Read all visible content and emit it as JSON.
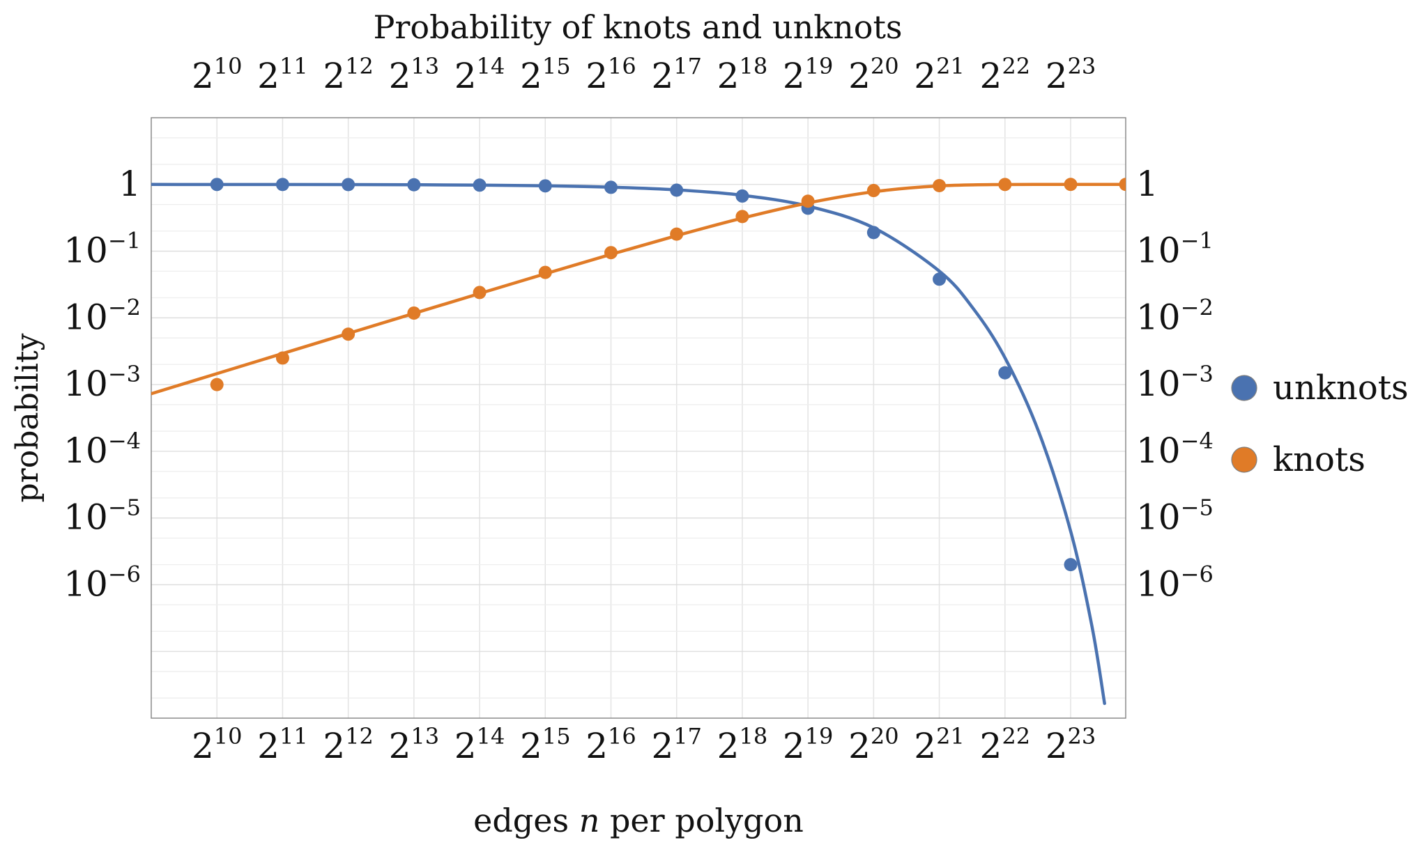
{
  "chart_data": {
    "type": "scatter",
    "title": "Probability of knots and unknots",
    "xlabel_parts": [
      "edges ",
      "n",
      " per polygon"
    ],
    "ylabel": "probability",
    "x_scale": "log2",
    "y_scale": "log10",
    "xlim": [
      512,
      15000000
    ],
    "ylim": [
      1e-08,
      10
    ],
    "grid": true,
    "legend_position": "right",
    "x_ticks": [
      {
        "value": 1024,
        "base": "2",
        "exp": "10"
      },
      {
        "value": 2048,
        "base": "2",
        "exp": "11"
      },
      {
        "value": 4096,
        "base": "2",
        "exp": "12"
      },
      {
        "value": 8192,
        "base": "2",
        "exp": "13"
      },
      {
        "value": 16384,
        "base": "2",
        "exp": "14"
      },
      {
        "value": 32768,
        "base": "2",
        "exp": "15"
      },
      {
        "value": 65536,
        "base": "2",
        "exp": "16"
      },
      {
        "value": 131072,
        "base": "2",
        "exp": "17"
      },
      {
        "value": 262144,
        "base": "2",
        "exp": "18"
      },
      {
        "value": 524288,
        "base": "2",
        "exp": "19"
      },
      {
        "value": 1048576,
        "base": "2",
        "exp": "20"
      },
      {
        "value": 2097152,
        "base": "2",
        "exp": "21"
      },
      {
        "value": 4194304,
        "base": "2",
        "exp": "22"
      },
      {
        "value": 8388608,
        "base": "2",
        "exp": "23"
      }
    ],
    "y_ticks": [
      {
        "value": 1,
        "base": "1",
        "exp": ""
      },
      {
        "value": 0.1,
        "base": "10",
        "exp": "−1"
      },
      {
        "value": 0.01,
        "base": "10",
        "exp": "−2"
      },
      {
        "value": 0.001,
        "base": "10",
        "exp": "−3"
      },
      {
        "value": 0.0001,
        "base": "10",
        "exp": "−4"
      },
      {
        "value": 1e-05,
        "base": "10",
        "exp": "−5"
      },
      {
        "value": 1e-06,
        "base": "10",
        "exp": "−6"
      }
    ],
    "series": [
      {
        "name": "unknots",
        "color": "#4a72b0",
        "x": [
          1024,
          2048,
          4096,
          8192,
          16384,
          32768,
          65536,
          131072,
          262144,
          524288,
          1048576,
          2097152,
          4194304,
          8388608
        ],
        "y": [
          0.999,
          0.997,
          0.994,
          0.988,
          0.976,
          0.952,
          0.905,
          0.82,
          0.67,
          0.44,
          0.19,
          0.038,
          0.0015,
          2e-06
        ],
        "fit_x": [
          512,
          1024,
          2048,
          4096,
          8192,
          16384,
          32768,
          65536,
          131072,
          262144,
          524288,
          1048576,
          2097152,
          3000000,
          4194304,
          6000000,
          8388608,
          10500000,
          12000000
        ],
        "fit_y": [
          0.9993,
          0.9986,
          0.9971,
          0.9942,
          0.9884,
          0.9769,
          0.9543,
          0.9107,
          0.8294,
          0.6879,
          0.4732,
          0.2239,
          0.0502,
          0.0138,
          0.00252,
          0.000193,
          6.34e-06,
          2.4e-07,
          1.66e-08
        ]
      },
      {
        "name": "knots",
        "color": "#e07b27",
        "x": [
          1024,
          2048,
          4096,
          8192,
          16384,
          32768,
          65536,
          131072,
          262144,
          524288,
          1048576,
          2097152,
          4194304,
          8388608,
          15000000
        ],
        "y": [
          0.001,
          0.0025,
          0.0057,
          0.0118,
          0.024,
          0.048,
          0.095,
          0.18,
          0.33,
          0.56,
          0.81,
          0.96,
          0.9985,
          0.99999,
          1
        ],
        "fit_x": [
          512,
          1024,
          2048,
          4096,
          8192,
          16384,
          32768,
          65536,
          131072,
          262144,
          524288,
          1048576,
          2097152,
          4194304,
          8388608,
          15000000
        ],
        "fit_y": [
          0.00073,
          0.00146,
          0.00292,
          0.00584,
          0.01166,
          0.02318,
          0.0458,
          0.0895,
          0.1707,
          0.3121,
          0.5268,
          0.7761,
          0.9498,
          0.9975,
          0.99999,
          1
        ]
      }
    ]
  }
}
